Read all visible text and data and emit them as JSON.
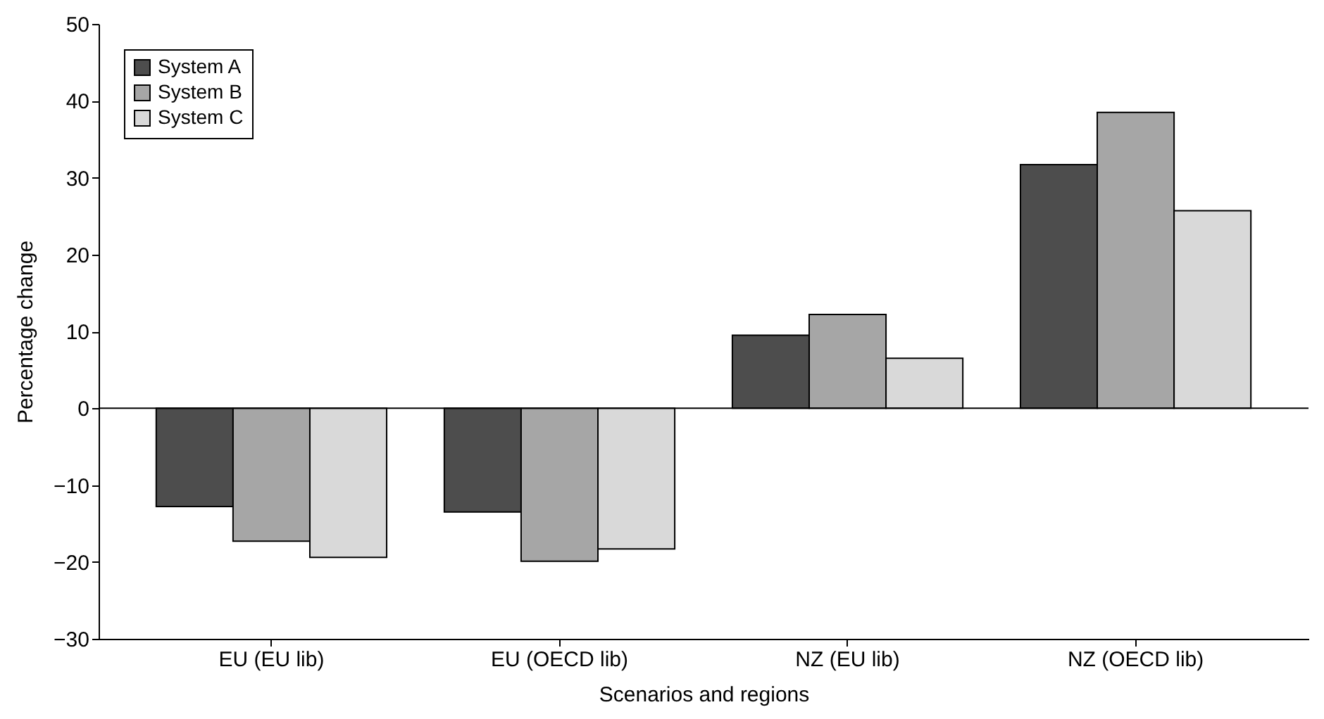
{
  "chart_data": {
    "type": "bar",
    "xlabel": "Scenarios and regions",
    "ylabel": "Percentage change",
    "categories": [
      "EU (EU lib)",
      "EU (OECD lib)",
      "NZ (EU lib)",
      "NZ (OECD lib)"
    ],
    "series": [
      {
        "name": "System A",
        "color": "#4d4d4d",
        "values": [
          -12.8,
          -13.5,
          9.5,
          31.7
        ]
      },
      {
        "name": "System B",
        "color": "#a6a6a6",
        "values": [
          -17.3,
          -19.9,
          12.2,
          38.5
        ]
      },
      {
        "name": "System C",
        "color": "#d9d9d9",
        "values": [
          -19.4,
          -18.3,
          6.5,
          25.7
        ]
      }
    ],
    "ylim": [
      -30,
      50
    ],
    "yticks": [
      -30,
      -20,
      -10,
      0,
      10,
      20,
      30,
      40,
      50
    ],
    "legend": "top left"
  }
}
